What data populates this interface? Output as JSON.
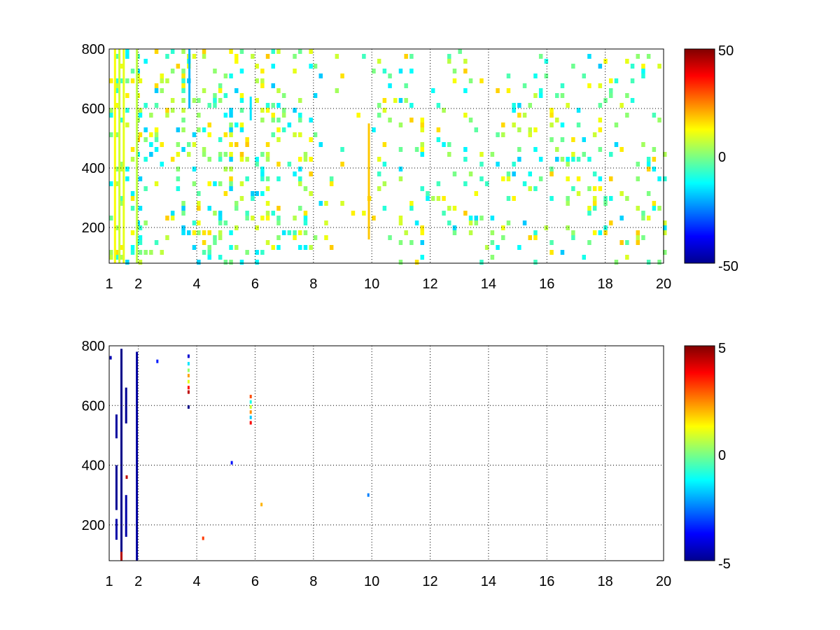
{
  "figure": {
    "background": "#ffffff"
  },
  "chart_data": [
    {
      "type": "heatmap",
      "title": "",
      "xlabel": "",
      "ylabel": "",
      "xlim": [
        1,
        20
      ],
      "ylim": [
        80,
        800
      ],
      "x_ticks": [
        1,
        2,
        4,
        6,
        8,
        10,
        12,
        14,
        16,
        18,
        20
      ],
      "y_ticks": [
        200,
        400,
        600,
        800
      ],
      "x_tick_labels": [
        "1",
        "2",
        "4",
        "6",
        "8",
        "10",
        "12",
        "14",
        "16",
        "18",
        "20"
      ],
      "y_tick_labels": [
        "200",
        "400",
        "600",
        "800"
      ],
      "grid": true,
      "grid_style": "dotted",
      "colormap": "jet",
      "color_range": [
        -50,
        50
      ],
      "colorbar_labels": [
        "50",
        "0",
        "-50"
      ],
      "description_of_cells": "sparse field of mostly near-zero values (cyan-green-yellow); dense low-frequency columns near x=1-2, scattered cells across x=2-20",
      "column_density": [
        {
          "x": [
            1,
            2
          ],
          "density": 0.55
        },
        {
          "x": [
            2,
            4
          ],
          "density": 0.35
        },
        {
          "x": [
            4,
            6
          ],
          "density": 0.45
        },
        {
          "x": [
            6,
            8
          ],
          "density": 0.35
        },
        {
          "x": [
            8,
            10
          ],
          "density": 0.12
        },
        {
          "x": [
            10,
            20
          ],
          "density": 0.22
        }
      ],
      "highlighted_streaks": [
        {
          "x": 1.2,
          "y": [
            80,
            800
          ],
          "value": 12
        },
        {
          "x": 1.35,
          "y": [
            80,
            800
          ],
          "value": 8
        },
        {
          "x": 1.5,
          "y": [
            80,
            800
          ],
          "value": 10
        },
        {
          "x": 1.95,
          "y": [
            80,
            800
          ],
          "value": 6
        },
        {
          "x": 3.75,
          "y": [
            600,
            800
          ],
          "value": -20
        },
        {
          "x": 5.85,
          "y": [
            560,
            640
          ],
          "value": -15
        },
        {
          "x": 9.9,
          "y": [
            160,
            550
          ],
          "value": 18
        }
      ],
      "value_range_sample": [
        -18,
        18
      ]
    },
    {
      "type": "heatmap",
      "title": "",
      "xlabel": "",
      "ylabel": "",
      "xlim": [
        1,
        20
      ],
      "ylim": [
        80,
        800
      ],
      "x_ticks": [
        1,
        2,
        4,
        6,
        8,
        10,
        12,
        14,
        16,
        18,
        20
      ],
      "y_ticks": [
        200,
        400,
        600,
        800
      ],
      "x_tick_labels": [
        "1",
        "2",
        "4",
        "6",
        "8",
        "10",
        "12",
        "14",
        "16",
        "18",
        "20"
      ],
      "y_tick_labels": [
        "200",
        "400",
        "600",
        "800"
      ],
      "grid": true,
      "grid_style": "dotted",
      "colormap": "jet",
      "color_range": [
        -5,
        5
      ],
      "colorbar_labels": [
        "5",
        "0",
        "-5"
      ],
      "sparse_marks": [
        {
          "x": 1.05,
          "y": 760,
          "value": -4.5
        },
        {
          "x": 1.25,
          "y": [
            250,
            400
          ],
          "value": -4.8
        },
        {
          "x": 1.25,
          "y": [
            150,
            220
          ],
          "value": -4.6
        },
        {
          "x": 1.25,
          "y": [
            490,
            570
          ],
          "value": -4.7
        },
        {
          "x": 1.42,
          "y": [
            80,
            790
          ],
          "value": -4.9
        },
        {
          "x": 1.42,
          "y": [
            80,
            110
          ],
          "value": 4.5
        },
        {
          "x": 1.58,
          "y": [
            160,
            300
          ],
          "value": -4.6
        },
        {
          "x": 1.58,
          "y": [
            540,
            660
          ],
          "value": -4.8
        },
        {
          "x": 1.6,
          "y": 360,
          "value": 4.4
        },
        {
          "x": 1.95,
          "y": [
            80,
            780
          ],
          "value": -4.7
        },
        {
          "x": 2.65,
          "y": 748,
          "value": -3.5
        },
        {
          "x": 3.72,
          "y": 765,
          "value": -4.2
        },
        {
          "x": 3.72,
          "y": 740,
          "value": -1.5
        },
        {
          "x": 3.72,
          "y": 718,
          "value": 0.2
        },
        {
          "x": 3.72,
          "y": 700,
          "value": 2.2
        },
        {
          "x": 3.72,
          "y": 680,
          "value": 1.0
        },
        {
          "x": 3.72,
          "y": 660,
          "value": 3.6
        },
        {
          "x": 3.72,
          "y": 645,
          "value": 4.4
        },
        {
          "x": 3.72,
          "y": 595,
          "value": -4.9
        },
        {
          "x": 4.22,
          "y": 155,
          "value": 3.2
        },
        {
          "x": 5.2,
          "y": 408,
          "value": -3.6
        },
        {
          "x": 5.85,
          "y": 630,
          "value": 3.0
        },
        {
          "x": 5.85,
          "y": 612,
          "value": -1.0
        },
        {
          "x": 5.85,
          "y": 595,
          "value": 0.8
        },
        {
          "x": 5.85,
          "y": 578,
          "value": 2.4
        },
        {
          "x": 5.85,
          "y": 560,
          "value": -1.8
        },
        {
          "x": 5.85,
          "y": 542,
          "value": 3.8
        },
        {
          "x": 6.22,
          "y": 268,
          "value": 2.0
        },
        {
          "x": 9.88,
          "y": 300,
          "value": -2.5
        }
      ]
    }
  ]
}
